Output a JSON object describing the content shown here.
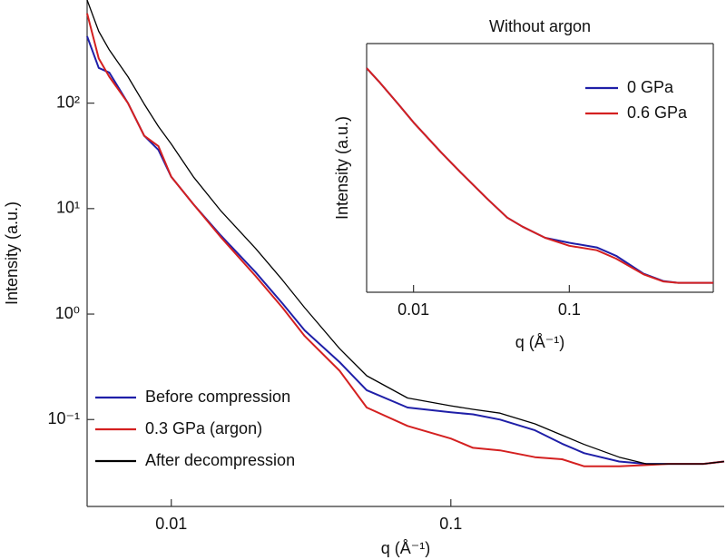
{
  "chart_data": [
    {
      "type": "line",
      "x_label": "q (Å⁻¹)",
      "y_label": "Intensity (a.u.)",
      "log_x": true,
      "log_y": true,
      "legend": "lower left",
      "xlim": [
        0.005,
        0.95
      ],
      "ylim": [
        0.015,
        950
      ],
      "xticks": [
        0.01,
        0.1
      ],
      "yticks": [
        {
          "value": 100,
          "label": "10²"
        },
        {
          "value": 10,
          "label": "10¹"
        },
        {
          "value": 1,
          "label": "10⁰"
        },
        {
          "value": 0.1,
          "label": "10⁻¹"
        }
      ],
      "x": [
        0.005,
        0.0055,
        0.006,
        0.007,
        0.008,
        0.009,
        0.01,
        0.012,
        0.015,
        0.02,
        0.025,
        0.03,
        0.04,
        0.05,
        0.07,
        0.1,
        0.12,
        0.15,
        0.2,
        0.25,
        0.3,
        0.4,
        0.5,
        0.6,
        0.8,
        0.95
      ],
      "series": [
        {
          "name": "Before compression",
          "color": "#1f1fa8",
          "values": [
            430,
            216,
            195,
            100,
            49,
            36,
            20,
            11,
            5.6,
            2.5,
            1.26,
            0.7,
            0.35,
            0.19,
            0.13,
            0.117,
            0.112,
            0.1,
            0.079,
            0.059,
            0.048,
            0.04,
            0.038,
            0.038,
            0.038,
            0.04
          ]
        },
        {
          "name": "0.3 GPa (argon)",
          "color": "#d42020",
          "values": [
            710,
            265,
            178,
            100,
            49,
            39,
            20,
            11,
            5.4,
            2.3,
            1.15,
            0.62,
            0.29,
            0.13,
            0.087,
            0.066,
            0.054,
            0.051,
            0.044,
            0.042,
            0.036,
            0.036,
            0.037,
            0.038,
            0.038,
            0.04
          ]
        },
        {
          "name": "After decompression",
          "color": "#000000",
          "values": [
            950,
            480,
            320,
            178,
            98,
            60,
            41,
            20,
            9.6,
            4.2,
            2.1,
            1.15,
            0.47,
            0.26,
            0.16,
            0.135,
            0.125,
            0.115,
            0.091,
            0.071,
            0.058,
            0.044,
            0.038,
            0.038,
            0.038,
            0.04
          ]
        }
      ]
    },
    {
      "type": "line",
      "title": "Without argon",
      "x_label": "q (Å⁻¹)",
      "y_label": "Intensity (a.u.)",
      "log_x": true,
      "log_y": true,
      "legend": "upper right",
      "frame": true,
      "xlim": [
        0.005,
        0.84
      ],
      "ylim": [
        0.28,
        42000
      ],
      "xticks": [
        0.01,
        0.1
      ],
      "x": [
        0.005,
        0.006,
        0.008,
        0.01,
        0.015,
        0.02,
        0.03,
        0.04,
        0.05,
        0.07,
        0.1,
        0.15,
        0.2,
        0.3,
        0.4,
        0.5,
        0.84
      ],
      "series": [
        {
          "name": "0 GPa",
          "color": "#1f1fa8",
          "values": [
            12900,
            6800,
            2290,
            960,
            230,
            88,
            24,
            10,
            6.5,
            3.8,
            3.0,
            2.4,
            1.6,
            0.68,
            0.48,
            0.44,
            0.44
          ]
        },
        {
          "name": "0.6 GPa",
          "color": "#d42020",
          "values": [
            12900,
            6800,
            2290,
            960,
            230,
            88,
            24,
            10,
            6.5,
            3.8,
            2.6,
            2.1,
            1.4,
            0.66,
            0.47,
            0.44,
            0.44
          ]
        }
      ]
    }
  ]
}
